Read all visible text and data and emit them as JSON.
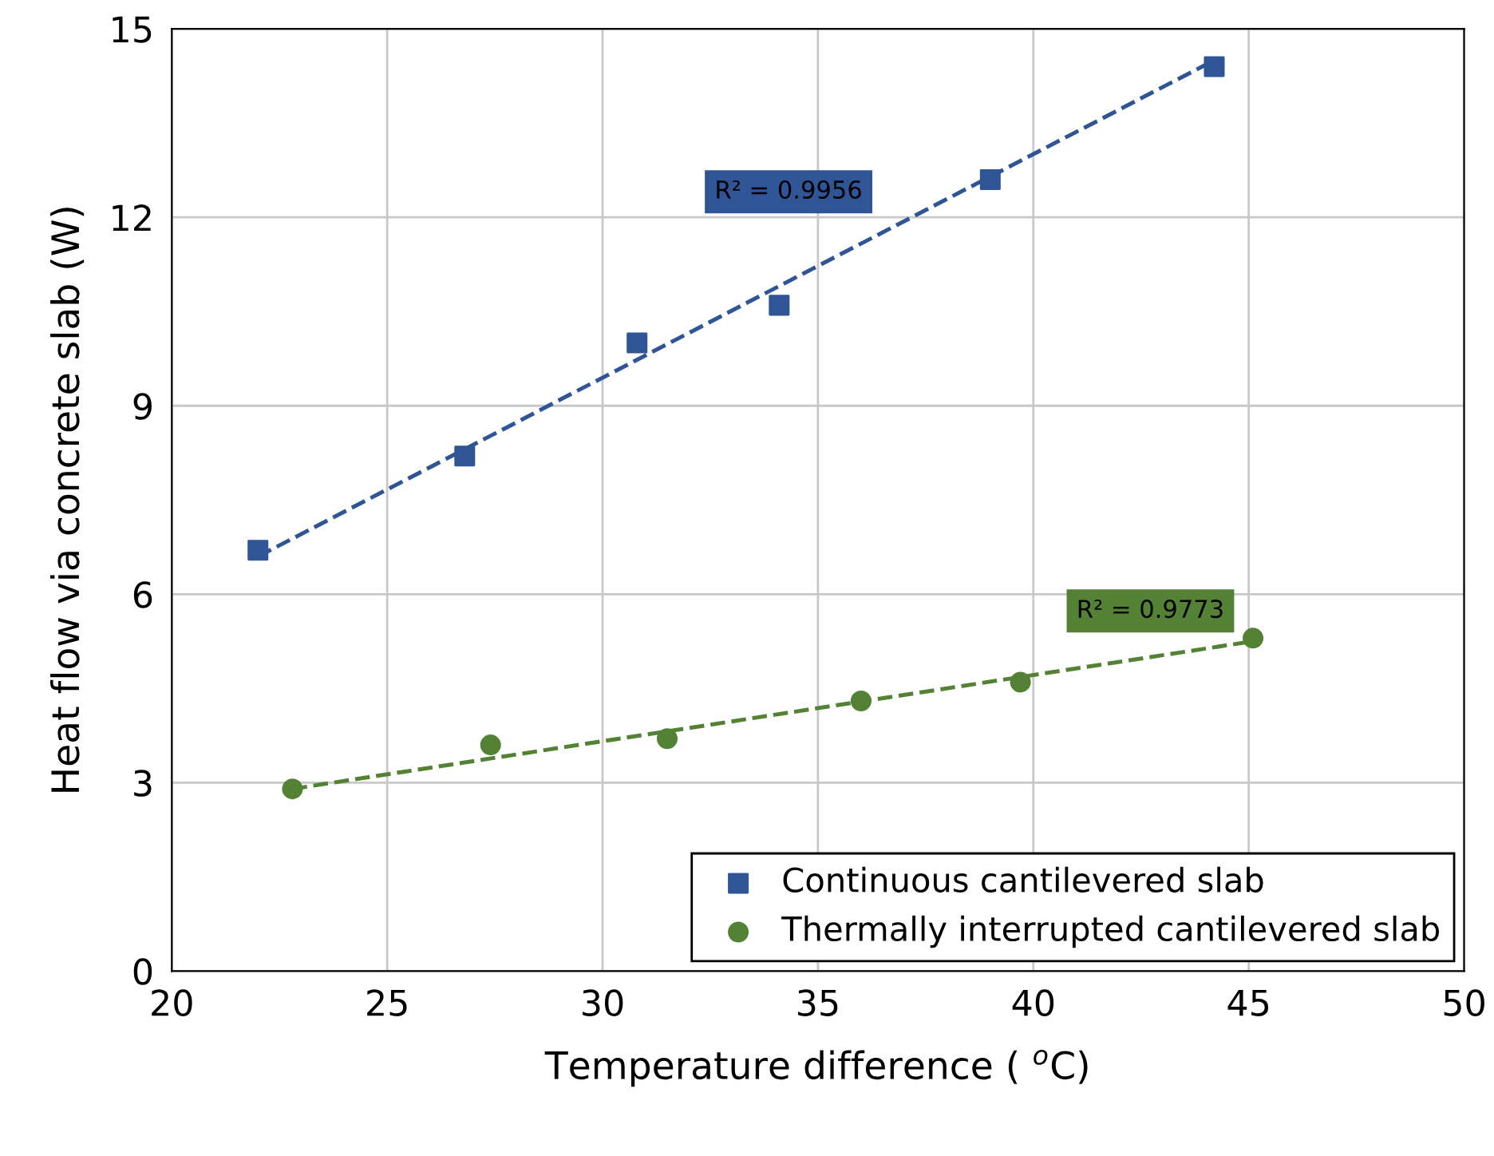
{
  "chart_data": {
    "type": "scatter",
    "xlabel": "Temperature difference ( $^{o}$C)",
    "ylabel": "Heat flow via concrete slab (W)",
    "xlim": [
      20,
      50
    ],
    "xticks": [
      20,
      25,
      30,
      35,
      40,
      45,
      50
    ],
    "ylim": [
      0,
      15
    ],
    "yticks": [
      0,
      3,
      6,
      9,
      12,
      15
    ],
    "grid": true,
    "legend": "bottom right",
    "series": [
      {
        "name": "Continuous cantilevered slab",
        "color": "#2f5597",
        "marker": "square",
        "x": [
          22.0,
          26.8,
          30.8,
          34.1,
          39.0,
          44.2
        ],
        "values": [
          6.7,
          8.2,
          10.0,
          10.6,
          12.6,
          14.4
        ]
      },
      {
        "name": "Thermally interrupted cantilevered slab",
        "color": "#548235",
        "marker": "circle",
        "x": [
          22.8,
          27.4,
          31.5,
          36.0,
          39.7,
          45.1
        ],
        "values": [
          2.9,
          3.6,
          3.7,
          4.3,
          4.6,
          5.3
        ]
      },
      {
        "type": "line",
        "color": "#2f5597",
        "line_style": "dashed",
        "marker": "none",
        "x": [
          22.0,
          44.2
        ],
        "values": [
          6.6,
          14.5
        ]
      },
      {
        "type": "line",
        "color": "#548235",
        "line_style": "dashed",
        "marker": "none",
        "x": [
          22.8,
          45.1
        ],
        "values": [
          2.9,
          5.25
        ]
      }
    ],
    "annotations": [
      "R² = 0.9956",
      "R² = 0.9773"
    ]
  }
}
